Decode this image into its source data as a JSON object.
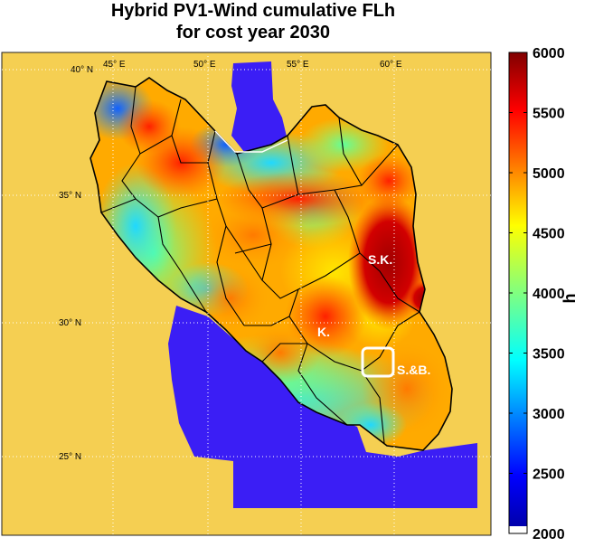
{
  "title": {
    "line1": "Hybrid PV1-Wind cumulative FLh",
    "line2": "for cost year 2030"
  },
  "map": {
    "longitude_labels": [
      "45° E",
      "50° E",
      "55° E",
      "60° E"
    ],
    "latitude_labels": [
      "40° N",
      "35° N",
      "30° N",
      "25° N"
    ],
    "regions": [
      {
        "id": "sk",
        "label": "S.K."
      },
      {
        "id": "k",
        "label": "K."
      },
      {
        "id": "sb",
        "label": "S.&B."
      }
    ],
    "colors": {
      "background": "#f5cf52",
      "water": "#3b1ef5",
      "highlight_box": "#ffffff",
      "borders": "#000000"
    }
  },
  "colorbar": {
    "unit_label": "h",
    "min": 2000,
    "max": 6000,
    "tick_labels": [
      "6000",
      "5500",
      "5000",
      "4500",
      "4000",
      "3500",
      "3000",
      "2500",
      "2000"
    ],
    "colormap": "jet"
  }
}
